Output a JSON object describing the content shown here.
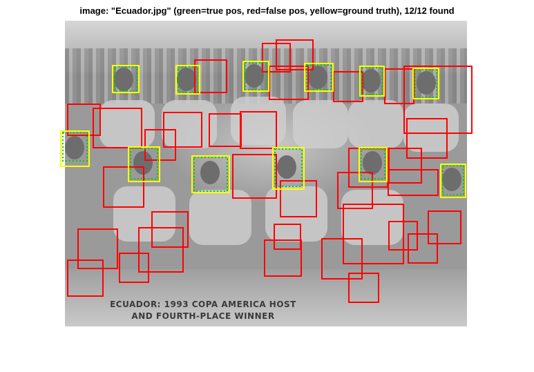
{
  "figure": {
    "title": "image: \"Ecuador.jpg\" (green=true pos, red=false pos, yellow=ground truth), 12/12 found"
  },
  "photo": {
    "caption_line_1": "ECUADOR: 1993 COPA AMERICA HOST",
    "caption_line_2": "AND FOURTH-PLACE WINNER"
  },
  "colors": {
    "true_pos": "#00cc00",
    "false_pos": "#ff0000",
    "ground_truth": "#ffff00"
  }
}
